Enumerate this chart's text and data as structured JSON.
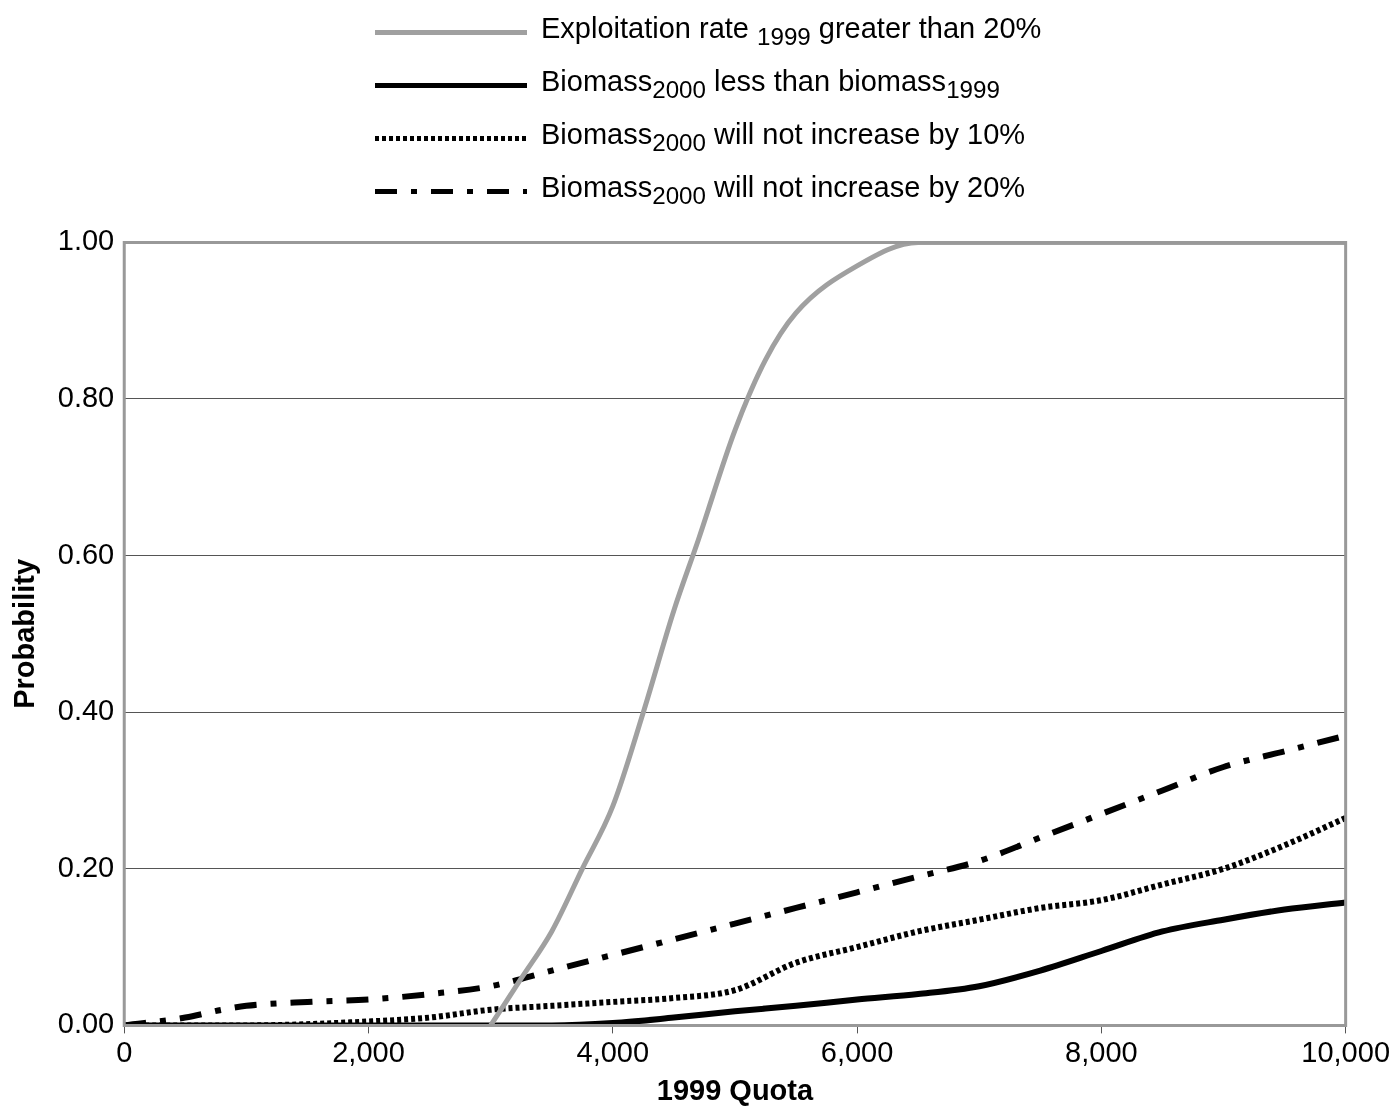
{
  "chart_data": {
    "type": "line",
    "xlabel": "1999 Quota",
    "ylabel": "Probability",
    "xlim": [
      0,
      10000
    ],
    "xticks": [
      0,
      {
        "value": 2000,
        "label": "2,000"
      },
      {
        "value": 4000,
        "label": "4,000"
      },
      {
        "value": 6000,
        "label": "6,000"
      },
      {
        "value": 8000,
        "label": "8,000"
      },
      {
        "value": 10000,
        "label": "10,000"
      }
    ],
    "ylim": [
      0,
      1
    ],
    "yticks": [
      {
        "value": 0,
        "label": "0.00"
      },
      {
        "value": 0.2,
        "label": "0.20"
      },
      {
        "value": 0.4,
        "label": "0.40"
      },
      {
        "value": 0.6,
        "label": "0.60"
      },
      {
        "value": 0.8,
        "label": "0.80"
      },
      {
        "value": 1,
        "label": "1.00"
      }
    ],
    "grid": "y",
    "legend": "top",
    "marker": "none",
    "series": [
      {
        "name": "Exploitation rate $_{1999}$ greater than 20%",
        "color": "#a0a0a0",
        "line_style": "solid",
        "x": [
          3000,
          3250,
          3500,
          3750,
          4000,
          4250,
          4500,
          4700,
          5000,
          5250,
          5500,
          6000,
          6500,
          7000,
          8000,
          9000,
          10000
        ],
        "values": [
          0,
          0.06,
          0.12,
          0.2,
          0.28,
          0.4,
          0.53,
          0.62,
          0.76,
          0.85,
          0.91,
          0.97,
          1,
          1,
          1,
          1,
          1
        ]
      },
      {
        "name": "Biomass$_{2000}$ less than biomass$_{1999}$",
        "color": "#000000",
        "line_style": "solid",
        "x": [
          0,
          1000,
          2000,
          3000,
          3500,
          4000,
          4500,
          5000,
          5500,
          6000,
          6500,
          7000,
          7500,
          8000,
          8500,
          9000,
          9500,
          10000
        ],
        "values": [
          0,
          0,
          0,
          0,
          0,
          0.003,
          0.01,
          0.018,
          0.025,
          0.033,
          0.04,
          0.05,
          0.07,
          0.095,
          0.12,
          0.135,
          0.148,
          0.157
        ]
      },
      {
        "name": "Biomass$_{2000}$ will not increase by 10%",
        "color": "#000000",
        "line_style": "dotted",
        "x": [
          0,
          1000,
          2000,
          2500,
          3000,
          3500,
          4000,
          4500,
          5000,
          5500,
          6000,
          6500,
          7000,
          7500,
          8000,
          8500,
          9000,
          9500,
          10000
        ],
        "values": [
          0,
          0,
          0.005,
          0.01,
          0.02,
          0.025,
          0.03,
          0.035,
          0.045,
          0.08,
          0.1,
          0.12,
          0.135,
          0.15,
          0.16,
          0.18,
          0.2,
          0.23,
          0.265
        ]
      },
      {
        "name": "Biomass$_{2000}$ will not increase by 20%",
        "color": "#000000",
        "line_style": "dashed",
        "x": [
          0,
          500,
          800,
          1000,
          1500,
          2000,
          2500,
          3000,
          3500,
          4000,
          4500,
          5000,
          5500,
          6000,
          6500,
          7000,
          7500,
          8000,
          8500,
          9000,
          9500,
          10000
        ],
        "values": [
          0,
          0.01,
          0.02,
          0.025,
          0.03,
          0.033,
          0.04,
          0.05,
          0.07,
          0.09,
          0.11,
          0.13,
          0.15,
          0.17,
          0.19,
          0.21,
          0.24,
          0.27,
          0.3,
          0.33,
          0.35,
          0.37
        ]
      }
    ]
  }
}
